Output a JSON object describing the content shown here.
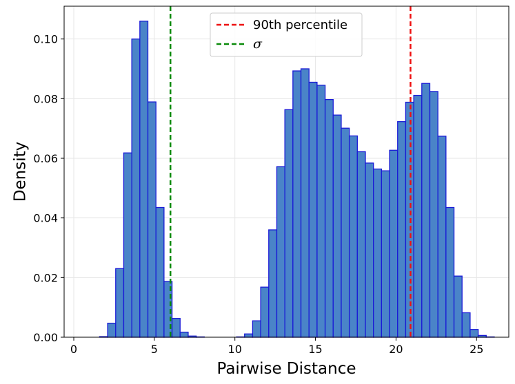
{
  "chart_data": {
    "type": "histogram",
    "title": "",
    "xlabel": "Pairwise Distance",
    "ylabel": "Density",
    "xlim": [
      -0.6,
      27.0
    ],
    "ylim": [
      0,
      0.111
    ],
    "xticks": [
      0,
      5,
      10,
      15,
      20,
      25
    ],
    "xtick_labels": [
      "0",
      "5",
      "10",
      "15",
      "20",
      "25"
    ],
    "yticks": [
      0.0,
      0.02,
      0.04,
      0.06,
      0.08,
      0.1
    ],
    "ytick_labels": [
      "0.00",
      "0.02",
      "0.04",
      "0.06",
      "0.08",
      "0.10"
    ],
    "grid": true,
    "bar_color": "#4a84c8",
    "bar_edge_color": "#1a1ad6",
    "bin_start": 0.6,
    "bin_width": 0.5,
    "densities": [
      0.0,
      0.0,
      0.0002,
      0.0047,
      0.023,
      0.0618,
      0.1,
      0.106,
      0.0789,
      0.0435,
      0.0187,
      0.0063,
      0.0017,
      0.0004,
      0.0001,
      0.0,
      0.0,
      0.0,
      0.0,
      0.0001,
      0.0011,
      0.0055,
      0.0168,
      0.036,
      0.0572,
      0.0763,
      0.0893,
      0.09,
      0.0855,
      0.0845,
      0.0797,
      0.0745,
      0.0701,
      0.0675,
      0.0622,
      0.0584,
      0.0564,
      0.0558,
      0.0627,
      0.0723,
      0.0788,
      0.0811,
      0.0851,
      0.0824,
      0.0674,
      0.0435,
      0.0205,
      0.0082,
      0.0026,
      0.0006,
      0.0001,
      0.0,
      0.0
    ],
    "vlines": [
      {
        "name": "90th percentile",
        "x": 20.9,
        "color": "#ee1111",
        "style": "dashed"
      },
      {
        "name": "σ",
        "x": 6.0,
        "color": "#0a8a0a",
        "style": "dashed"
      }
    ],
    "legend": {
      "position": "upper center",
      "entries": [
        "90th percentile",
        "σ"
      ]
    }
  }
}
